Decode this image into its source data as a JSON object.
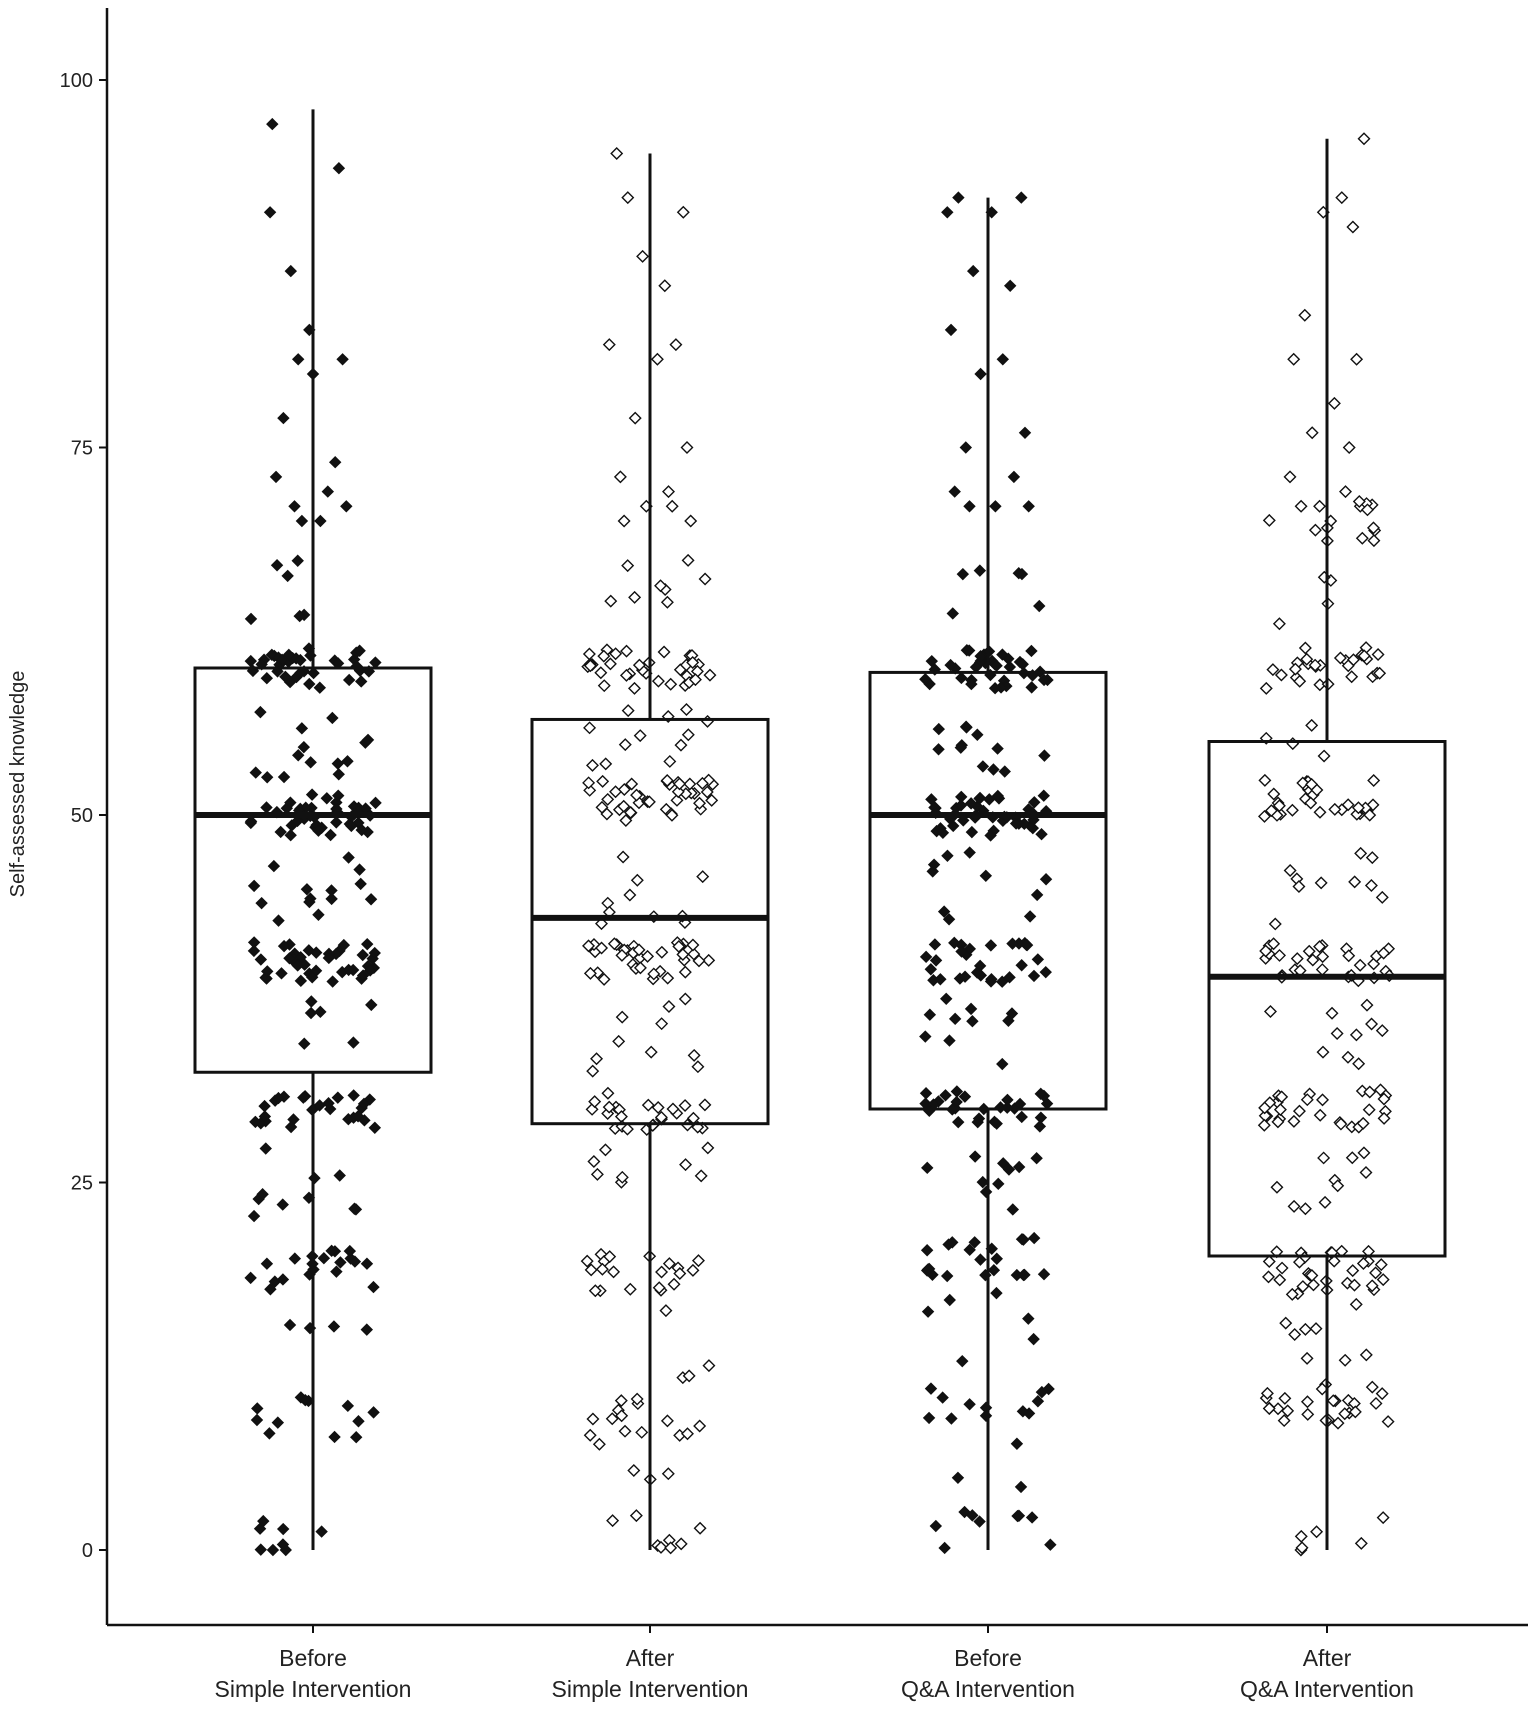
{
  "chart_data": {
    "type": "boxplot",
    "ylabel": "Self-assessed knowledge",
    "xlabel": "",
    "title": "",
    "ylim": [
      -5,
      105
    ],
    "yticks": [
      0,
      25,
      50,
      75,
      100
    ],
    "ytick_labels": [
      "0",
      "25",
      "50",
      "75",
      "100"
    ],
    "grid": false,
    "legend": "none",
    "categories": [
      {
        "line1": "Before",
        "line2": "Simple Intervention",
        "marker": "filled"
      },
      {
        "line1": "After",
        "line2": "Simple Intervention",
        "marker": "open"
      },
      {
        "line1": "Before",
        "line2": "Q&A Intervention",
        "marker": "filled"
      },
      {
        "line1": "After",
        "line2": "Q&A Intervention",
        "marker": "open"
      }
    ],
    "boxes": [
      {
        "whisker_low": 0,
        "q1": 32.5,
        "median": 50,
        "q3": 60,
        "whisker_high": 98
      },
      {
        "whisker_low": 0,
        "q1": 29,
        "median": 43,
        "q3": 56.5,
        "whisker_high": 95
      },
      {
        "whisker_low": 0,
        "q1": 30,
        "median": 50,
        "q3": 59.7,
        "whisker_high": 92
      },
      {
        "whisker_low": 0,
        "q1": 20,
        "median": 39,
        "q3": 55,
        "whisker_high": 96
      }
    ],
    "points": [
      {
        "offsets": [
          -0.55,
          -0.58,
          0.35,
          -0.3,
          -0.05,
          0.4,
          -0.2,
          0.0,
          -0.4,
          0.3,
          -0.5,
          0.2,
          -0.25,
          0.45,
          -0.15,
          0.1
        ],
        "values": [
          97,
          91,
          94,
          87,
          83,
          81,
          81,
          80,
          77,
          74,
          73,
          72,
          71,
          71,
          70,
          70
        ]
      },
      {
        "offsets": [
          -0.45,
          -0.3,
          0.45,
          -0.1,
          0.2,
          -0.55,
          0.35,
          0.1,
          -0.2,
          0.5,
          -0.4,
          0.25,
          -0.05,
          0.3,
          -0.35,
          0.55
        ],
        "values": [
          95,
          92,
          91,
          88,
          86,
          82,
          82,
          81,
          77,
          75,
          73,
          72,
          71,
          71,
          70,
          70
        ]
      },
      {
        "offsets": [
          -0.55,
          -0.4,
          0.05,
          0.45,
          -0.2,
          0.3,
          -0.5,
          0.2,
          -0.1,
          0.5,
          -0.3,
          0.35,
          -0.45,
          0.1,
          -0.25,
          0.55
        ],
        "values": [
          91,
          92,
          91,
          92,
          87,
          86,
          83,
          81,
          80,
          76,
          75,
          73,
          72,
          71,
          71,
          71
        ]
      },
      {
        "offsets": [
          0.5,
          0.2,
          -0.05,
          0.35,
          -0.3,
          -0.45,
          0.4,
          0.1,
          -0.2,
          0.3,
          -0.5,
          0.25,
          -0.1,
          0.45,
          -0.35,
          0.05
        ],
        "values": [
          96,
          92,
          91,
          90,
          84,
          81,
          81,
          78,
          76,
          75,
          73,
          72,
          71,
          71,
          71,
          70
        ]
      }
    ]
  }
}
